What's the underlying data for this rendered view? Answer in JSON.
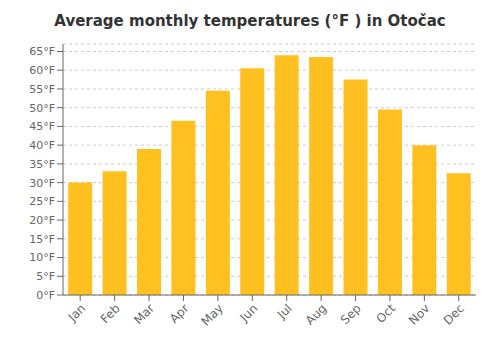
{
  "chart_data": {
    "type": "bar",
    "title": "Average monthly temperatures (°F ) in Otočac",
    "categories": [
      "Jan",
      "Feb",
      "Mar",
      "Apr",
      "May",
      "Jun",
      "Jul",
      "Aug",
      "Sep",
      "Oct",
      "Nov",
      "Dec"
    ],
    "values": [
      30,
      33,
      39,
      46.5,
      54.5,
      60.5,
      64,
      63.5,
      57.5,
      49.5,
      40,
      32.5
    ],
    "color": "#FFC020",
    "ylim": [
      0,
      67
    ],
    "yticks": [
      {
        "value": 0,
        "label": "0°F"
      },
      {
        "value": 5,
        "label": "5°F"
      },
      {
        "value": 10,
        "label": "10°F"
      },
      {
        "value": 15,
        "label": "15°F"
      },
      {
        "value": 20,
        "label": "20°F"
      },
      {
        "value": 25,
        "label": "25°F"
      },
      {
        "value": 30,
        "label": "30°F"
      },
      {
        "value": 35,
        "label": "35°F"
      },
      {
        "value": 40,
        "label": "40°F"
      },
      {
        "value": 45,
        "label": "45°F"
      },
      {
        "value": 50,
        "label": "50°F"
      },
      {
        "value": 55,
        "label": "55°F"
      },
      {
        "value": 60,
        "label": "60°F"
      },
      {
        "value": 65,
        "label": "65°F"
      }
    ],
    "grid": true
  }
}
